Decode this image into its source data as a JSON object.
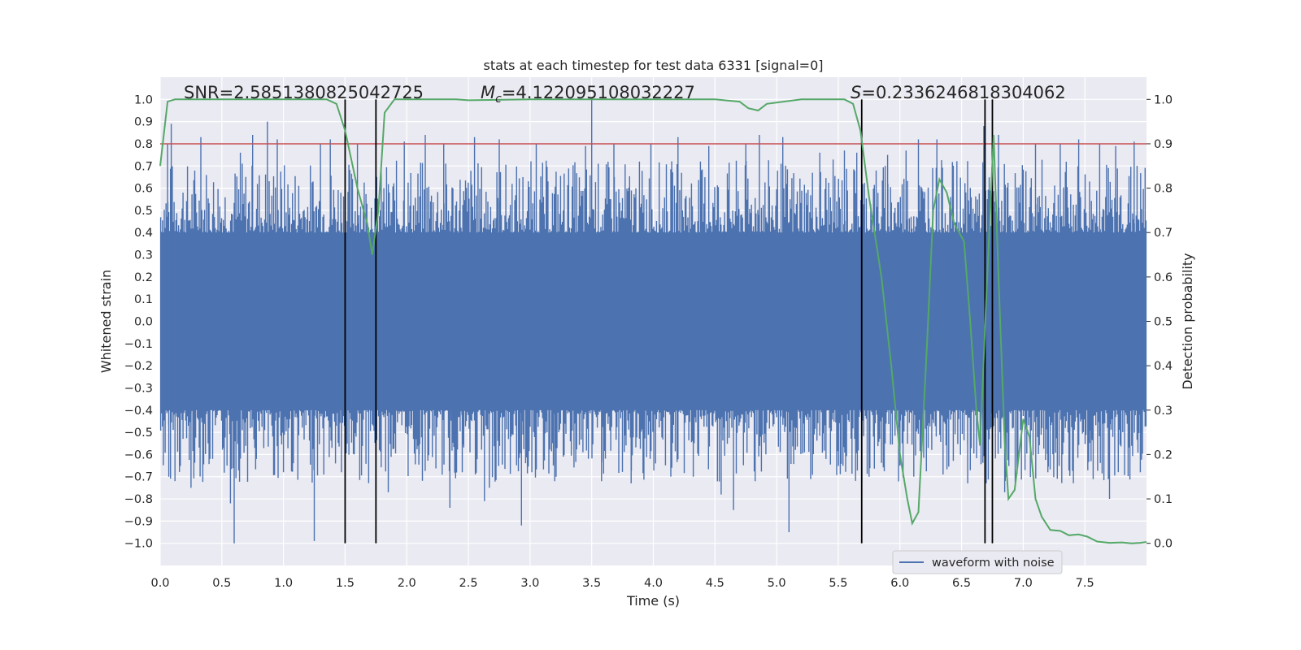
{
  "chart_data": {
    "type": "line",
    "title": "stats at each timestep for test data 6331 [signal=0]",
    "xlabel": "Time (s)",
    "ylabel": "Whitened strain",
    "y2label": "Detection probability",
    "xlim": [
      0,
      8
    ],
    "ylim": [
      -1.1,
      1.1
    ],
    "y2lim": [
      -0.05,
      1.05
    ],
    "x_ticks": [
      "0.0",
      "0.5",
      "1.0",
      "1.5",
      "2.0",
      "2.5",
      "3.0",
      "3.5",
      "4.0",
      "4.5",
      "5.0",
      "5.5",
      "6.0",
      "6.5",
      "7.0",
      "7.5"
    ],
    "y_ticks": [
      "1.0",
      "0.9",
      "0.8",
      "0.7",
      "0.6",
      "0.5",
      "0.4",
      "0.3",
      "0.2",
      "0.1",
      "0.0",
      "−0.1",
      "−0.2",
      "−0.3",
      "−0.4",
      "−0.5",
      "−0.6",
      "−0.7",
      "−0.8",
      "−0.9",
      "−1.0"
    ],
    "y2_ticks": [
      "1.0",
      "0.9",
      "0.8",
      "0.7",
      "0.6",
      "0.5",
      "0.4",
      "0.3",
      "0.2",
      "0.1",
      "0.0"
    ],
    "grid": true,
    "legend": {
      "placement": "lower-right",
      "entries": [
        "waveform with noise"
      ]
    },
    "annotations": {
      "snr_prefix": "SNR=",
      "snr_value": "2.5851380825042725",
      "mc_symbol": "M",
      "mc_sub": "c",
      "mc_value": "=4.122095108032227",
      "s_symbol": "S",
      "s_value": "=0.2336246818304062"
    },
    "threshold": {
      "y2": 0.9,
      "color": "#c44e52"
    },
    "vertical_lines": [
      1.5,
      1.75,
      5.69,
      6.69,
      6.75
    ],
    "series": [
      {
        "name": "waveform with noise",
        "color": "#4c72b0",
        "core_amplitude": 0.4,
        "peaks": [
          [
            0.06,
            0.8
          ],
          [
            0.07,
            -0.7
          ],
          [
            0.09,
            0.89
          ],
          [
            0.25,
            -0.75
          ],
          [
            0.33,
            0.83
          ],
          [
            0.4,
            -0.62
          ],
          [
            0.57,
            -0.82
          ],
          [
            0.6,
            -1.0
          ],
          [
            0.65,
            0.76
          ],
          [
            0.75,
            0.84
          ],
          [
            0.78,
            -0.62
          ],
          [
            0.87,
            0.9
          ],
          [
            0.95,
            0.82
          ],
          [
            1.0,
            -0.68
          ],
          [
            1.25,
            -0.99
          ],
          [
            1.3,
            0.8
          ],
          [
            1.38,
            0.82
          ],
          [
            1.47,
            -0.68
          ],
          [
            1.6,
            0.8
          ],
          [
            1.85,
            -0.77
          ],
          [
            1.98,
            0.81
          ],
          [
            2.1,
            -0.6
          ],
          [
            2.15,
            0.84
          ],
          [
            2.3,
            0.8
          ],
          [
            2.35,
            -0.84
          ],
          [
            2.45,
            -0.68
          ],
          [
            2.55,
            0.83
          ],
          [
            2.63,
            -0.81
          ],
          [
            2.67,
            -0.75
          ],
          [
            2.75,
            0.82
          ],
          [
            2.93,
            -0.92
          ],
          [
            3.05,
            0.8
          ],
          [
            3.2,
            -0.72
          ],
          [
            3.45,
            0.79
          ],
          [
            3.5,
            1.01
          ],
          [
            3.58,
            -0.72
          ],
          [
            3.68,
            0.8
          ],
          [
            3.82,
            -0.73
          ],
          [
            3.98,
            0.8
          ],
          [
            4.15,
            -0.66
          ],
          [
            4.2,
            0.83
          ],
          [
            4.45,
            0.79
          ],
          [
            4.55,
            -0.78
          ],
          [
            4.65,
            -0.85
          ],
          [
            4.75,
            0.8
          ],
          [
            4.86,
            0.84
          ],
          [
            5.05,
            0.83
          ],
          [
            5.1,
            -0.95
          ],
          [
            5.35,
            0.76
          ],
          [
            5.4,
            -0.62
          ],
          [
            5.55,
            0.77
          ],
          [
            5.65,
            0.76
          ],
          [
            5.75,
            -0.7
          ],
          [
            5.9,
            0.75
          ],
          [
            6.0,
            -0.65
          ],
          [
            6.05,
            0.77
          ],
          [
            6.15,
            0.82
          ],
          [
            6.3,
            0.82
          ],
          [
            6.35,
            -0.69
          ],
          [
            6.55,
            -0.73
          ],
          [
            6.68,
            0.88
          ],
          [
            6.7,
            -0.73
          ],
          [
            6.8,
            0.84
          ],
          [
            6.85,
            -0.77
          ],
          [
            7.1,
            0.8
          ],
          [
            7.2,
            -0.68
          ],
          [
            7.3,
            0.8
          ],
          [
            7.45,
            0.82
          ],
          [
            7.55,
            -0.63
          ],
          [
            7.62,
            0.8
          ],
          [
            7.7,
            -0.8
          ],
          [
            7.75,
            0.79
          ],
          [
            7.9,
            0.81
          ],
          [
            7.95,
            -0.68
          ]
        ]
      },
      {
        "name": "detection probability",
        "axis": "y2",
        "color": "#55a868",
        "points": [
          [
            0.0,
            0.85
          ],
          [
            0.06,
            0.995
          ],
          [
            0.12,
            1.0
          ],
          [
            0.5,
            1.0
          ],
          [
            1.0,
            1.0
          ],
          [
            1.35,
            1.0
          ],
          [
            1.43,
            0.99
          ],
          [
            1.5,
            0.93
          ],
          [
            1.6,
            0.8
          ],
          [
            1.68,
            0.72
          ],
          [
            1.72,
            0.65
          ],
          [
            1.77,
            0.75
          ],
          [
            1.82,
            0.97
          ],
          [
            1.9,
            1.0
          ],
          [
            2.4,
            1.0
          ],
          [
            2.5,
            0.998
          ],
          [
            3.0,
            1.0
          ],
          [
            4.0,
            1.0
          ],
          [
            4.5,
            1.0
          ],
          [
            4.7,
            0.995
          ],
          [
            4.77,
            0.98
          ],
          [
            4.85,
            0.975
          ],
          [
            4.92,
            0.99
          ],
          [
            5.2,
            1.0
          ],
          [
            5.55,
            1.0
          ],
          [
            5.62,
            0.99
          ],
          [
            5.68,
            0.93
          ],
          [
            5.75,
            0.78
          ],
          [
            5.85,
            0.6
          ],
          [
            5.93,
            0.4
          ],
          [
            6.0,
            0.2
          ],
          [
            6.06,
            0.1
          ],
          [
            6.1,
            0.045
          ],
          [
            6.15,
            0.07
          ],
          [
            6.22,
            0.45
          ],
          [
            6.27,
            0.75
          ],
          [
            6.32,
            0.82
          ],
          [
            6.38,
            0.79
          ],
          [
            6.44,
            0.72
          ],
          [
            6.52,
            0.68
          ],
          [
            6.57,
            0.5
          ],
          [
            6.62,
            0.3
          ],
          [
            6.65,
            0.22
          ],
          [
            6.7,
            0.55
          ],
          [
            6.76,
            0.92
          ],
          [
            6.8,
            0.6
          ],
          [
            6.85,
            0.23
          ],
          [
            6.88,
            0.1
          ],
          [
            6.93,
            0.12
          ],
          [
            7.0,
            0.28
          ],
          [
            7.05,
            0.24
          ],
          [
            7.1,
            0.1
          ],
          [
            7.15,
            0.06
          ],
          [
            7.22,
            0.03
          ],
          [
            7.3,
            0.028
          ],
          [
            7.37,
            0.018
          ],
          [
            7.45,
            0.02
          ],
          [
            7.52,
            0.015
          ],
          [
            7.6,
            0.004
          ],
          [
            7.7,
            0.001
          ],
          [
            7.8,
            0.002
          ],
          [
            7.88,
            0.0
          ],
          [
            7.95,
            0.001
          ],
          [
            8.0,
            0.003
          ]
        ]
      }
    ]
  }
}
